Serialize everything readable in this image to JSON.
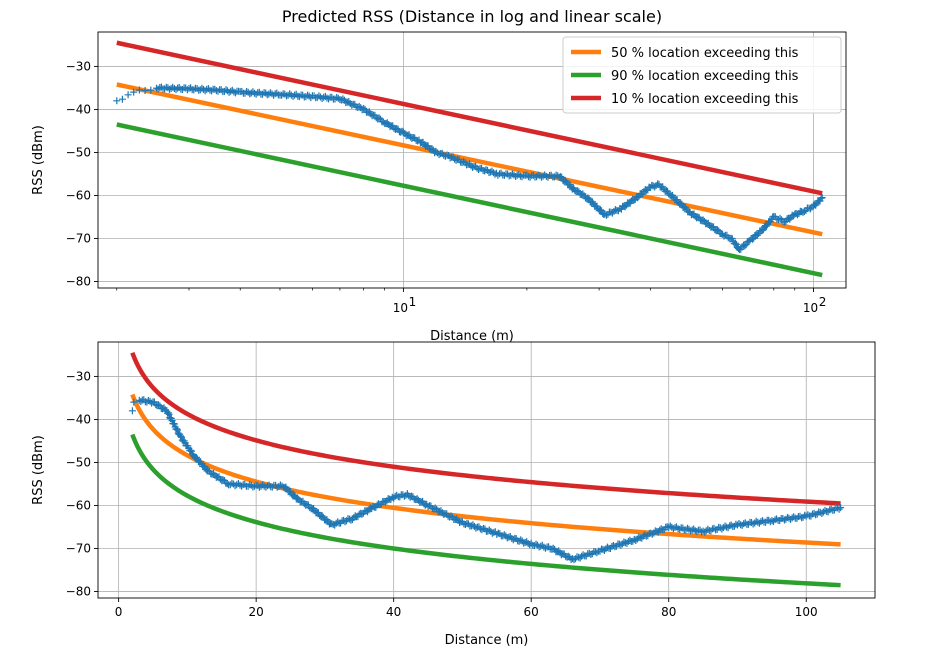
{
  "chart_data": [
    {
      "type": "line",
      "title": "Predicted RSS (Distance in log and linear scale)",
      "xlabel": "Distance (m)",
      "ylabel": "RSS (dBm)",
      "xscale": "log",
      "xlim": [
        1.8,
        120
      ],
      "ylim": [
        -81.5,
        -22
      ],
      "xticks": [
        {
          "value": 10,
          "base": "10",
          "exp": "1"
        },
        {
          "value": 100,
          "base": "10",
          "exp": "2"
        }
      ],
      "yticks": [
        -30,
        -40,
        -50,
        -60,
        -70,
        -80
      ],
      "ytick_labels": [
        "−30",
        "−40",
        "−50",
        "−60",
        "−70",
        "−80"
      ],
      "grid": true,
      "legend_position": "top-right",
      "measured": {
        "marker": "+",
        "color": "#1f77b4",
        "points": [
          [
            2,
            -38
          ],
          [
            2.2,
            -36
          ],
          [
            2.5,
            -35
          ],
          [
            3,
            -35.2
          ],
          [
            3.5,
            -35.5
          ],
          [
            4,
            -36
          ],
          [
            5,
            -36.5
          ],
          [
            6,
            -37
          ],
          [
            7,
            -37.5
          ],
          [
            8,
            -40
          ],
          [
            9,
            -43
          ],
          [
            10,
            -45.5
          ],
          [
            11,
            -47.5
          ],
          [
            12,
            -50
          ],
          [
            13,
            -51
          ],
          [
            15,
            -53.5
          ],
          [
            17,
            -55
          ],
          [
            20,
            -55.5
          ],
          [
            24,
            -55.5
          ],
          [
            26,
            -58.5
          ],
          [
            28,
            -60.5
          ],
          [
            31,
            -64.5
          ],
          [
            34,
            -63
          ],
          [
            37,
            -60.5
          ],
          [
            40,
            -58
          ],
          [
            42,
            -57.5
          ],
          [
            45,
            -60
          ],
          [
            50,
            -64
          ],
          [
            55,
            -66.5
          ],
          [
            60,
            -69
          ],
          [
            63,
            -70
          ],
          [
            66,
            -72.5
          ],
          [
            70,
            -70.5
          ],
          [
            75,
            -68
          ],
          [
            80,
            -65
          ],
          [
            85,
            -66
          ],
          [
            90,
            -64.5
          ],
          [
            95,
            -63.5
          ],
          [
            100,
            -62.5
          ],
          [
            105,
            -60.5
          ]
        ]
      },
      "series": [
        {
          "name": "50 % location exceeding this",
          "color": "#ff7f0e",
          "x": [
            2,
            105
          ],
          "y": [
            -34.2,
            -69
          ]
        },
        {
          "name": "90 % location exceeding this",
          "color": "#2ca02c",
          "x": [
            2,
            105
          ],
          "y": [
            -43.5,
            -78.5
          ]
        },
        {
          "name": "10 % location exceeding this",
          "color": "#d62728",
          "x": [
            2,
            105
          ],
          "y": [
            -24.5,
            -59.5
          ]
        }
      ]
    },
    {
      "type": "line",
      "xlabel": "Distance (m)",
      "ylabel": "RSS (dBm)",
      "xscale": "linear",
      "xlim": [
        -3,
        110
      ],
      "ylim": [
        -81.5,
        -22
      ],
      "xticks": [
        0,
        20,
        40,
        60,
        80,
        100
      ],
      "yticks": [
        -30,
        -40,
        -50,
        -60,
        -70,
        -80
      ],
      "ytick_labels": [
        "−30",
        "−40",
        "−50",
        "−60",
        "−70",
        "−80"
      ],
      "grid": true,
      "measured": {
        "marker": "+",
        "color": "#1f77b4",
        "points": [
          [
            2,
            -38
          ],
          [
            2.2,
            -36
          ],
          [
            3,
            -35.5
          ],
          [
            5,
            -36
          ],
          [
            7,
            -38
          ],
          [
            9,
            -44
          ],
          [
            11,
            -48.5
          ],
          [
            13,
            -52
          ],
          [
            16,
            -55
          ],
          [
            20,
            -55.5
          ],
          [
            24,
            -55.5
          ],
          [
            26,
            -58.5
          ],
          [
            28,
            -60.5
          ],
          [
            31,
            -64.5
          ],
          [
            34,
            -63
          ],
          [
            37,
            -60.5
          ],
          [
            40,
            -58
          ],
          [
            42,
            -57.5
          ],
          [
            45,
            -60
          ],
          [
            50,
            -64
          ],
          [
            55,
            -66.5
          ],
          [
            60,
            -69
          ],
          [
            63,
            -70
          ],
          [
            66,
            -72.5
          ],
          [
            70,
            -70.5
          ],
          [
            75,
            -68
          ],
          [
            80,
            -65
          ],
          [
            85,
            -66
          ],
          [
            90,
            -64.5
          ],
          [
            95,
            -63.5
          ],
          [
            100,
            -62.5
          ],
          [
            105,
            -60.5
          ]
        ]
      },
      "series": [
        {
          "name": "50 % location exceeding this",
          "color": "#ff7f0e",
          "model": {
            "a": -34.2,
            "b": 20.25
          }
        },
        {
          "name": "90 % location exceeding this",
          "color": "#2ca02c",
          "model": {
            "a": -43.5,
            "b": 20.36
          }
        },
        {
          "name": "10 % location exceeding this",
          "color": "#d62728",
          "model": {
            "a": -24.5,
            "b": 20.36
          }
        }
      ]
    }
  ]
}
